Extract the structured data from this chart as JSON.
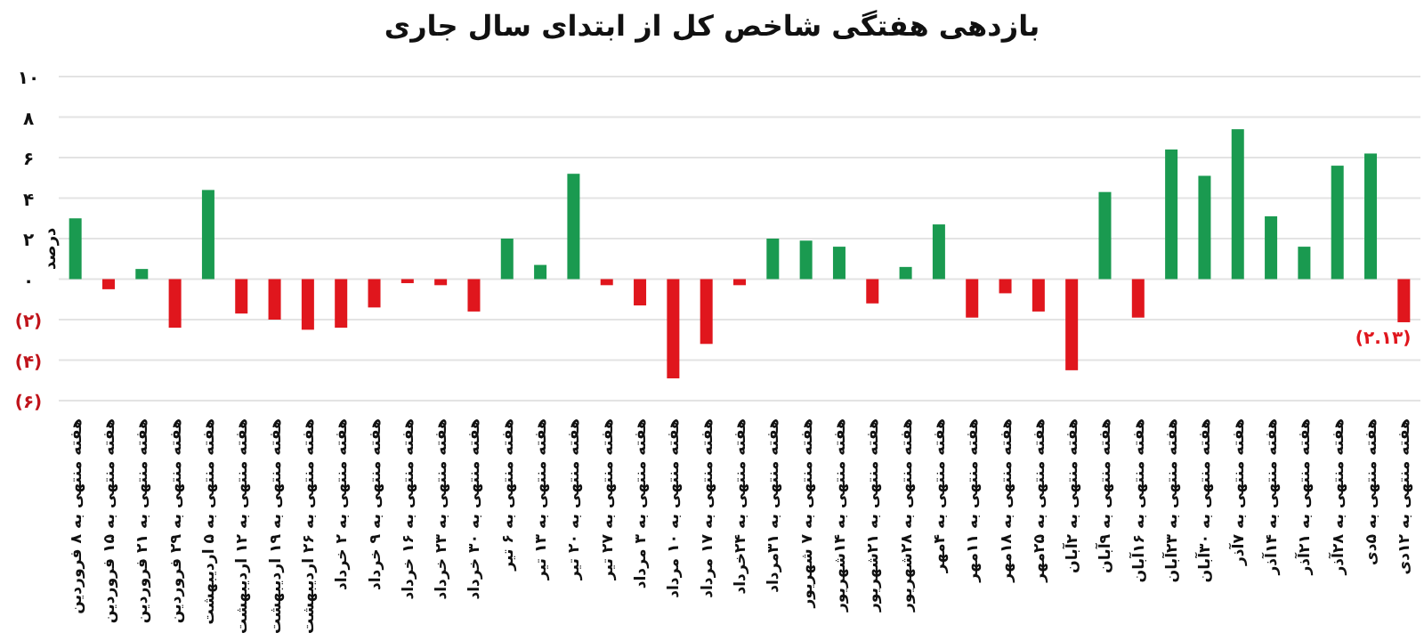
{
  "chart_data": {
    "type": "bar",
    "title": "بازدهی هفتگی شاخص کل از ابتدای سال جاری",
    "ylabel": "درصد",
    "categories": [
      "هفته منتهی به ۸ فروردین",
      "هفته منتهی به ۱۵ فروردین",
      "هفته منتهی به ۲۱ فروردین",
      "هفته منتهی به ۲۹ فروردین",
      "هفته منتهی به ۵ اردیبهشت",
      "هفته منتهی به ۱۲ اردیبهشت",
      "هفته منتهی به ۱۹ اردیبهشت",
      "هفته منتهی به ۲۶ اردیبهشت",
      "هفته منتهی به ۲ خرداد",
      "هفته منتهی به ۹ خرداد",
      "هفته منتهی به ۱۶ خرداد",
      "هفته منتهی به ۲۳ خرداد",
      "هفته منتهی به ۳۰ خرداد",
      "هفته منتهی به ۶ تیر",
      "هفته منتهی به ۱۳ تیر",
      "هفته منتهی به ۲۰ تیر",
      "هفته منتهی به ۲۷ تیر",
      "هفته منتهی به ۳ مرداد",
      "هفته منتهی به ۱۰ مرداد",
      "هفته منتهی به ۱۷ مرداد",
      "هفته منتهی به ۲۴خرداد",
      "هفته منتهی به ۳۱مرداد",
      "هفته منتهی به ۷ شهریور",
      "هفته منتهی به ۱۴شهریور",
      "هفته منتهی به ۲۱شهریور",
      "هفته منتهی به ۲۸شهریور",
      "هفته منتهی به ۴مهر",
      "هفته منتهی به ۱۱مهر",
      "هفته منتهی به ۱۸مهر",
      "هفته منتهی به ۲۵مهر",
      "هفته منتهی به ۲آبان",
      "هفته منتهی به ۹آبان",
      "هفته منتهی به ۱۶آبان",
      "هفته منتهی به ۲۳آبان",
      "هفته منتهی به ۳۰آبان",
      "هفته منتهی به ۷آذر",
      "هفته منتهی به ۱۴آذر",
      "هفته منتهی به ۲۱آذر",
      "هفته منتهی به ۲۸آذر",
      "هفته منتهی به ۵دی",
      "هفته منتهی به ۱۲دی"
    ],
    "values": [
      3.0,
      -0.5,
      0.5,
      -2.4,
      4.4,
      -1.7,
      -2.0,
      -2.5,
      -2.4,
      -1.4,
      -0.2,
      -0.3,
      -1.6,
      2.0,
      0.7,
      5.2,
      -0.3,
      -1.3,
      -4.9,
      -3.2,
      -0.3,
      2.0,
      1.9,
      1.6,
      -1.2,
      0.6,
      2.7,
      -1.9,
      -0.7,
      -1.6,
      -4.5,
      4.3,
      -1.9,
      6.4,
      5.1,
      7.4,
      3.1,
      1.6,
      5.6,
      6.2,
      -2.13
    ],
    "colors": [
      "#1a9a50",
      "#e0161d",
      "#1a9a50",
      "#e0161d",
      "#1a9a50",
      "#e0161d",
      "#e0161d",
      "#e0161d",
      "#e0161d",
      "#e0161d",
      "#e0161d",
      "#e0161d",
      "#e0161d",
      "#1a9a50",
      "#1a9a50",
      "#1a9a50",
      "#e0161d",
      "#e0161d",
      "#e0161d",
      "#e0161d",
      "#e0161d",
      "#1a9a50",
      "#1a9a50",
      "#1a9a50",
      "#e0161d",
      "#1a9a50",
      "#1a9a50",
      "#e0161d",
      "#e0161d",
      "#e0161d",
      "#e0161d",
      "#1a9a50",
      "#e0161d",
      "#1a9a50",
      "#1a9a50",
      "#1a9a50",
      "#1a9a50",
      "#1a9a50",
      "#1a9a50",
      "#1a9a50",
      "#e0161d"
    ],
    "value_labels": [
      null,
      null,
      null,
      null,
      null,
      null,
      null,
      null,
      null,
      null,
      null,
      null,
      null,
      null,
      null,
      null,
      null,
      null,
      null,
      null,
      null,
      null,
      null,
      null,
      null,
      null,
      null,
      null,
      null,
      null,
      null,
      null,
      null,
      null,
      null,
      null,
      null,
      null,
      null,
      null,
      "(۲.۱۳)"
    ],
    "ylim": [
      -6,
      10
    ],
    "yticks": [
      {
        "value": -6,
        "label": "(۶)"
      },
      {
        "value": -4,
        "label": "(۴)"
      },
      {
        "value": -2,
        "label": "(۲)"
      },
      {
        "value": 0,
        "label": "۰"
      },
      {
        "value": 2,
        "label": "۲"
      },
      {
        "value": 4,
        "label": "۴"
      },
      {
        "value": 6,
        "label": "۶"
      },
      {
        "value": 8,
        "label": "۸"
      },
      {
        "value": 10,
        "label": "۱۰"
      }
    ],
    "grid": "y"
  }
}
